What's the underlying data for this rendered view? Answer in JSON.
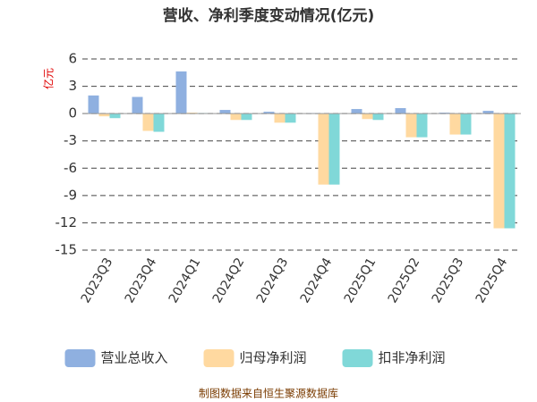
{
  "chart_data": {
    "type": "bar",
    "title": "营收、净利季度变动情况(亿元)",
    "y_label": "亿元",
    "categories": [
      "2023Q3",
      "2023Q4",
      "2024Q1",
      "2024Q2",
      "2024Q3",
      "2024Q4",
      "2025Q1",
      "2025Q2",
      "2025Q3",
      "2025Q4"
    ],
    "series": [
      {
        "name": "营业总收入",
        "color": "#8fb0e0",
        "values": [
          1.99,
          1.83,
          4.63,
          0.4,
          0.2,
          0.05,
          0.5,
          0.6,
          0.1,
          0.3
        ]
      },
      {
        "name": "归母净利润",
        "color": "#ffd9a0",
        "values": [
          -0.3,
          -1.9,
          0.1,
          -0.7,
          -1.0,
          -7.8,
          -0.6,
          -2.6,
          -2.3,
          -12.6
        ]
      },
      {
        "name": "扣非净利润",
        "color": "#80d8d8",
        "values": [
          -0.5,
          -2.0,
          0.05,
          -0.7,
          -1.0,
          -7.8,
          -0.7,
          -2.6,
          -2.3,
          -12.6
        ]
      }
    ],
    "ylim": [
      -15,
      6
    ],
    "yticks": [
      -15,
      -12,
      -9,
      -6,
      -3,
      0,
      3,
      6
    ],
    "grid": true,
    "source": "制图数据来自恒生聚源数据库"
  }
}
